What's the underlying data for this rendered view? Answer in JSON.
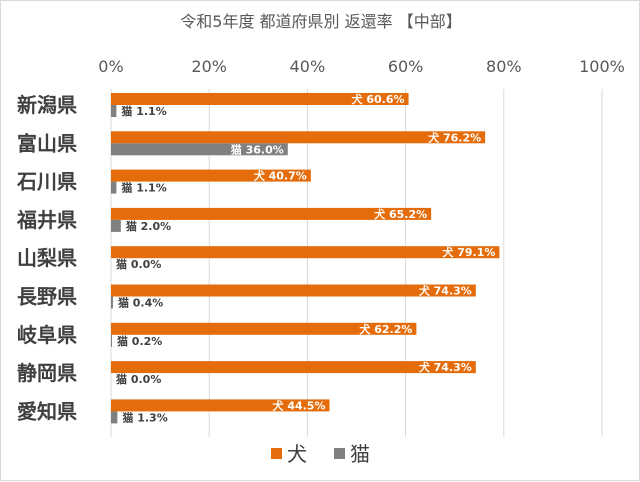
{
  "chart_data": {
    "type": "bar",
    "orientation": "horizontal",
    "title": "令和5年度 都道府県別 返還率 【中部】",
    "categories": [
      "新潟県",
      "富山県",
      "石川県",
      "福井県",
      "山梨県",
      "長野県",
      "岐阜県",
      "静岡県",
      "愛知県"
    ],
    "series": [
      {
        "name": "犬",
        "color": "#e46c0a",
        "values": [
          60.6,
          76.2,
          40.7,
          65.2,
          79.1,
          74.3,
          62.2,
          74.3,
          44.5
        ],
        "labels": [
          "犬 60.6%",
          "犬 76.2%",
          "犬 40.7%",
          "犬 65.2%",
          "犬 79.1%",
          "犬 74.3%",
          "犬 62.2%",
          "犬 74.3%",
          "犬 44.5%"
        ]
      },
      {
        "name": "猫",
        "color": "#808080",
        "values": [
          1.1,
          36.0,
          1.1,
          2.0,
          0.0,
          0.4,
          0.2,
          0.0,
          1.3
        ],
        "labels": [
          "猫 1.1%",
          "猫 36.0%",
          "猫 1.1%",
          "猫 2.0%",
          "猫 0.0%",
          "猫 0.4%",
          "猫 0.2%",
          "猫 0.0%",
          "猫 1.3%"
        ]
      }
    ],
    "xlim": [
      0,
      100
    ],
    "xticks": [
      "0%",
      "20%",
      "40%",
      "60%",
      "80%",
      "100%"
    ],
    "xaxis_position": "top",
    "grid": true,
    "legend": "bottom"
  }
}
